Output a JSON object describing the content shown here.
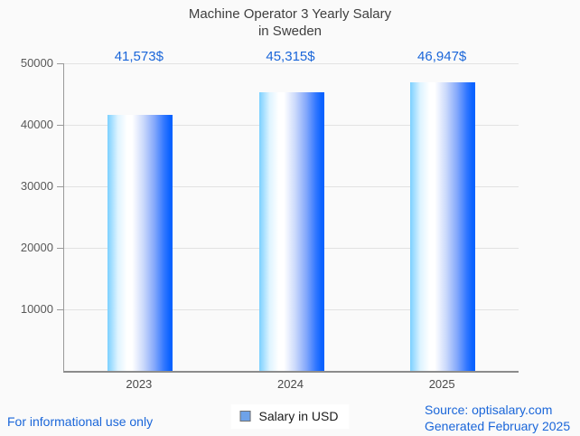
{
  "chart": {
    "title": "Machine Operator 3 Yearly Salary\nin Sweden"
  },
  "chart_data": {
    "type": "bar",
    "title": "Machine Operator 3 Yearly Salary in Sweden",
    "categories": [
      "2023",
      "2024",
      "2025"
    ],
    "series": [
      {
        "name": "Salary in USD",
        "values": [
          41573,
          45315,
          46947
        ]
      }
    ],
    "value_labels": [
      "41,573$",
      "45,315$",
      "46,947$"
    ],
    "xlabel": "",
    "ylabel": "",
    "ylim": [
      0,
      50000
    ],
    "yticks": [
      10000,
      20000,
      30000,
      40000,
      50000
    ],
    "grid": true,
    "legend_position": "bottom-center"
  },
  "legend": {
    "label": "Salary in USD"
  },
  "footer": {
    "left": "For informational use only",
    "source_line1": "Source: optisalary.com",
    "source_line2": "Generated February 2025"
  },
  "colors": {
    "accent_blue": "#1a66d9",
    "bar_gradient_left": "#7bd0ff",
    "bar_gradient_mid": "#ffffff",
    "bar_gradient_right": "#0a62ff",
    "grid": "#e2e2e2",
    "axis": "#9a9a9a",
    "title_text": "#3f3f3f",
    "tick_text": "#595959",
    "legend_marker_fill": "#6ea2e8",
    "legend_marker_border": "#707070",
    "background": "#fafafa"
  }
}
